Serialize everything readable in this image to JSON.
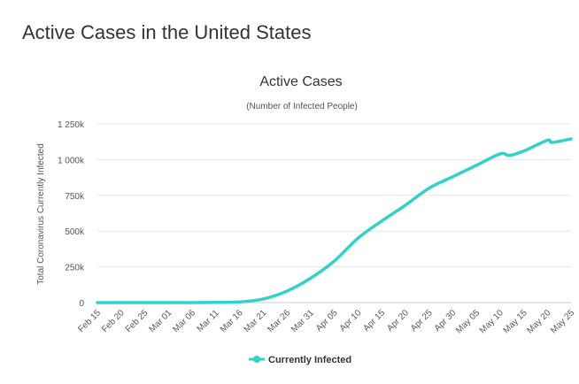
{
  "page": {
    "title": "Active Cases in the United States"
  },
  "chart_data": {
    "type": "line",
    "title": "Active Cases",
    "subtitle": "(Number of Infected People)",
    "xlabel": "",
    "ylabel": "Total Coronavirus Currently Infected",
    "x": [
      "Feb 15",
      "Feb 20",
      "Feb 25",
      "Mar 01",
      "Mar 06",
      "Mar 11",
      "Mar 16",
      "Mar 21",
      "Mar 26",
      "Mar 31",
      "Apr 05",
      "Apr 10",
      "Apr 15",
      "Apr 20",
      "Apr 25",
      "Apr 30",
      "May 05",
      "May 10",
      "May 12",
      "May 15",
      "May 20",
      "May 21",
      "May 25"
    ],
    "y_ticks": [
      "0",
      "250k",
      "500k",
      "750k",
      "1 000k",
      "1 250k"
    ],
    "ylim": [
      0,
      1250000
    ],
    "series": [
      {
        "name": "Currently Infected",
        "color": "#33d1cc",
        "points": [
          {
            "date": "Feb 15",
            "value": 15
          },
          {
            "date": "Feb 20",
            "value": 15
          },
          {
            "date": "Feb 25",
            "value": 50
          },
          {
            "date": "Mar 01",
            "value": 70
          },
          {
            "date": "Mar 06",
            "value": 250
          },
          {
            "date": "Mar 11",
            "value": 1200
          },
          {
            "date": "Mar 16",
            "value": 4500
          },
          {
            "date": "Mar 21",
            "value": 25000
          },
          {
            "date": "Mar 26",
            "value": 80000
          },
          {
            "date": "Mar 31",
            "value": 170000
          },
          {
            "date": "Apr 05",
            "value": 290000
          },
          {
            "date": "Apr 10",
            "value": 450000
          },
          {
            "date": "Apr 15",
            "value": 570000
          },
          {
            "date": "Apr 20",
            "value": 680000
          },
          {
            "date": "Apr 25",
            "value": 800000
          },
          {
            "date": "Apr 30",
            "value": 880000
          },
          {
            "date": "May 05",
            "value": 960000
          },
          {
            "date": "May 10",
            "value": 1040000
          },
          {
            "date": "May 12",
            "value": 1030000
          },
          {
            "date": "May 15",
            "value": 1060000
          },
          {
            "date": "May 20",
            "value": 1135000
          },
          {
            "date": "May 21",
            "value": 1120000
          },
          {
            "date": "May 25",
            "value": 1145000
          }
        ]
      }
    ],
    "grid": true,
    "legend": {
      "position": "bottom-center",
      "entries": [
        "Currently Infected"
      ]
    }
  }
}
